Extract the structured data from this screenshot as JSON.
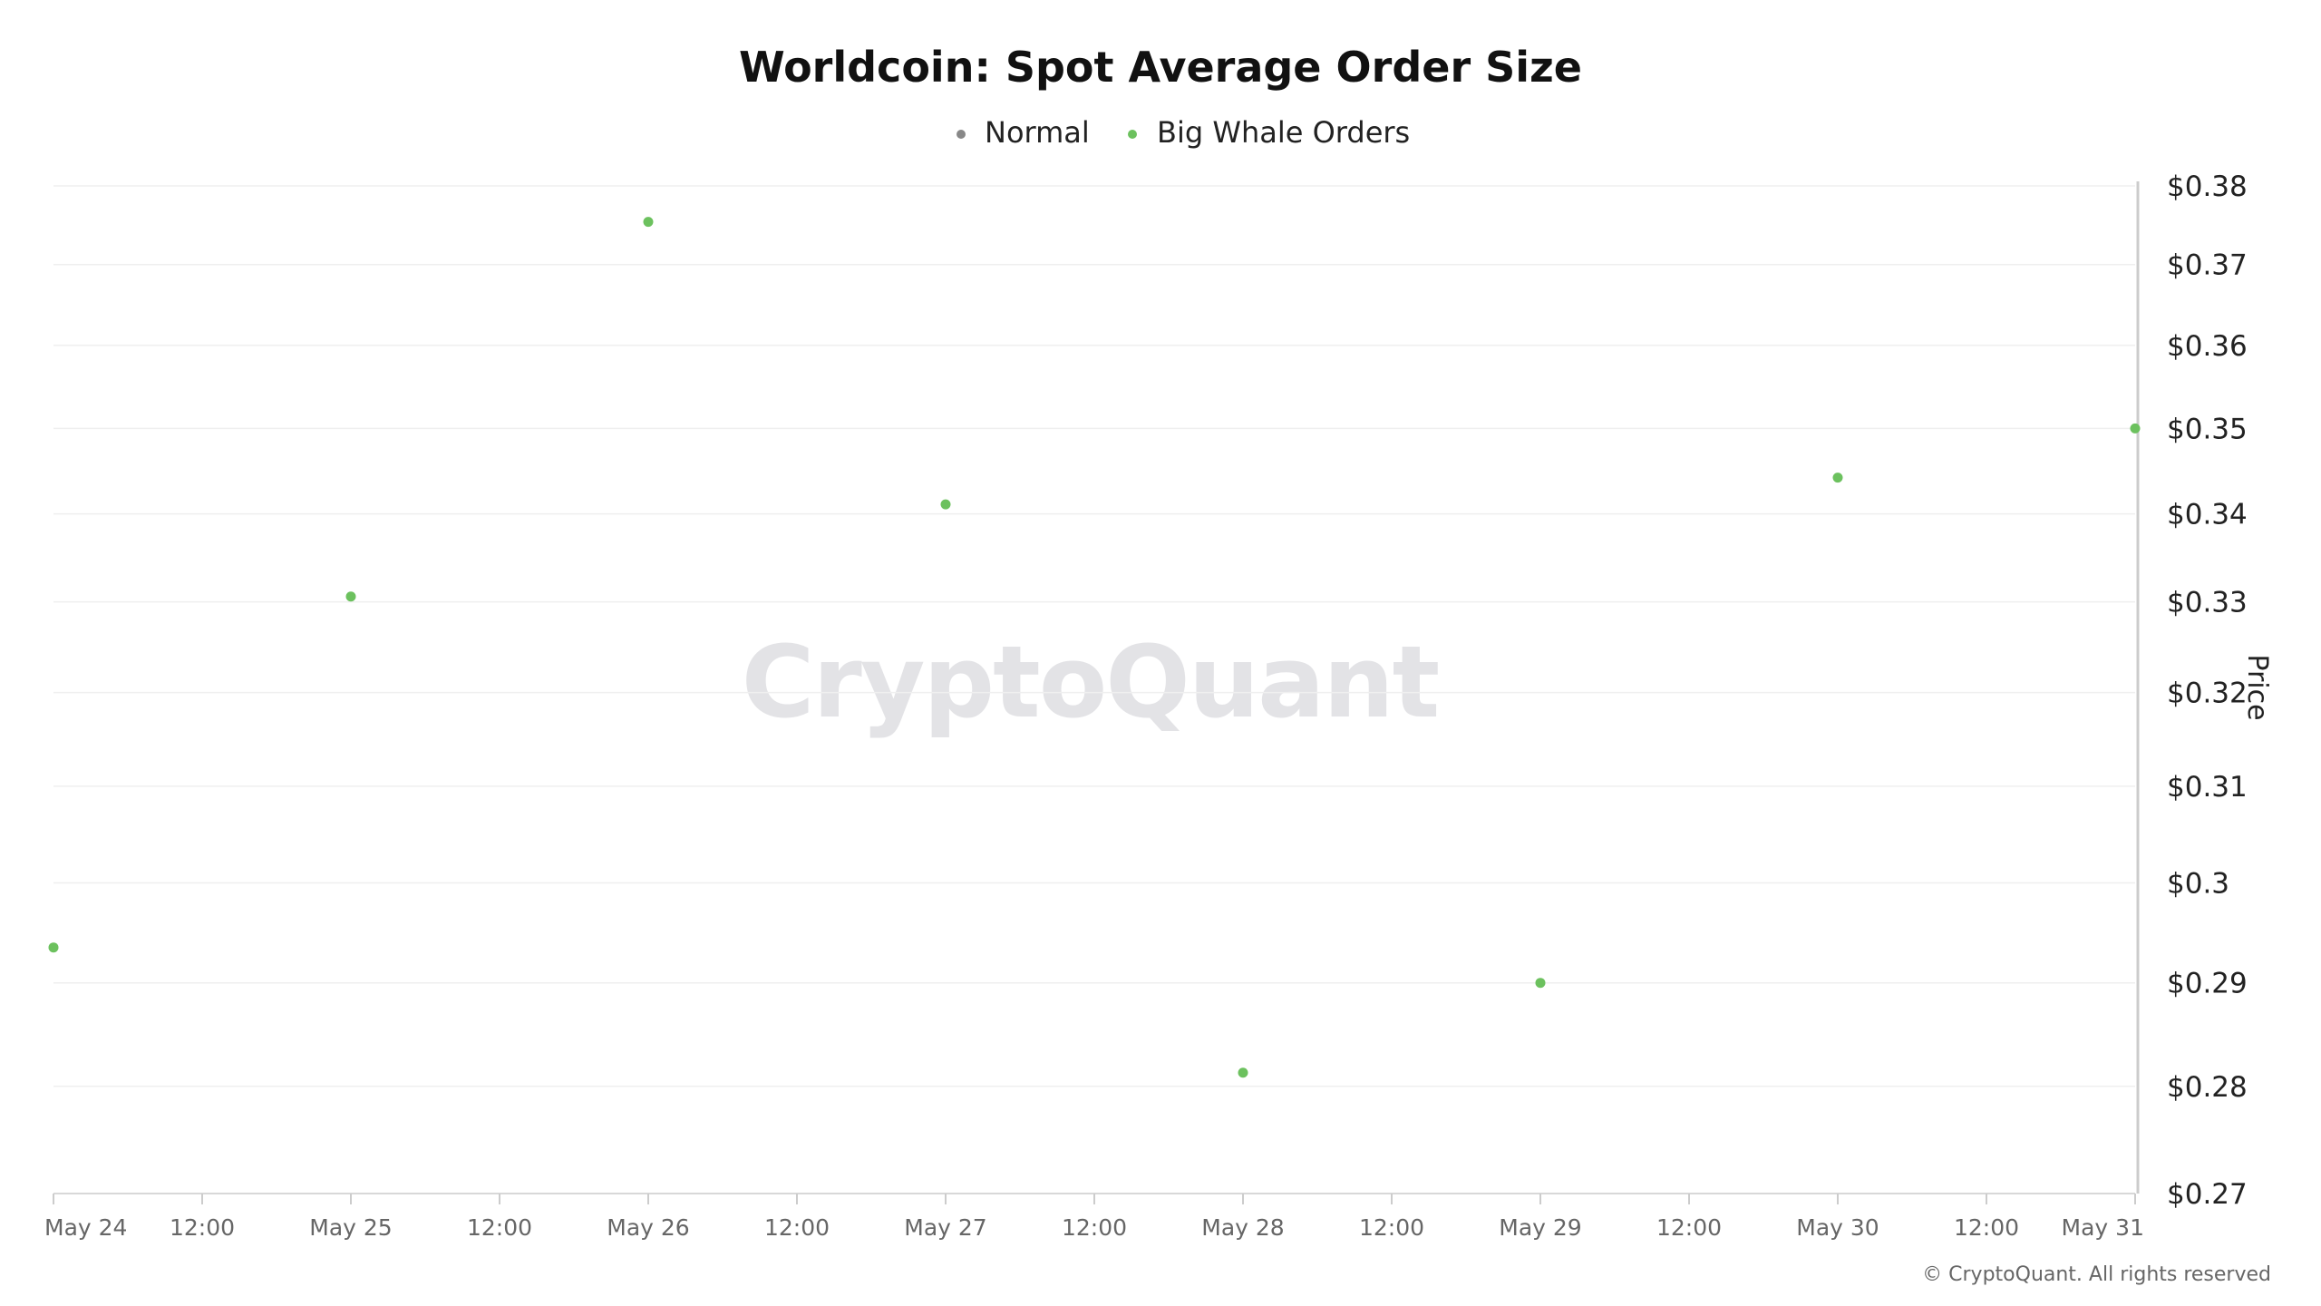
{
  "chart_data": {
    "type": "scatter",
    "title": "Worldcoin: Spot Average Order Size",
    "ylabel": "Price",
    "xlabel": "",
    "watermark": "CryptoQuant",
    "credit": "© CryptoQuant. All rights reserved",
    "legend": [
      {
        "name": "Normal",
        "color": "#888888"
      },
      {
        "name": "Big Whale Orders",
        "color": "#6cc15e"
      }
    ],
    "series": [
      {
        "name": "Big Whale Orders",
        "color": "#6cc15e",
        "points": [
          {
            "x": "May 24",
            "y": 0.2935
          },
          {
            "x": "May 25",
            "y": 0.3306
          },
          {
            "x": "May 26",
            "y": 0.3754
          },
          {
            "x": "May 27",
            "y": 0.3411
          },
          {
            "x": "May 28",
            "y": 0.2813
          },
          {
            "x": "May 29",
            "y": 0.29
          },
          {
            "x": "May 30",
            "y": 0.3442
          },
          {
            "x": "May 31",
            "y": 0.35
          }
        ]
      }
    ],
    "x_ticks": [
      "May 24",
      "12:00",
      "May 25",
      "12:00",
      "May 26",
      "12:00",
      "May 27",
      "12:00",
      "May 28",
      "12:00",
      "May 29",
      "12:00",
      "May 30",
      "12:00",
      "May 31"
    ],
    "y_ticks": [
      {
        "value": 0.27,
        "label": "$0.27"
      },
      {
        "value": 0.28,
        "label": "$0.28"
      },
      {
        "value": 0.29,
        "label": "$0.29"
      },
      {
        "value": 0.3,
        "label": "$0.3"
      },
      {
        "value": 0.31,
        "label": "$0.31"
      },
      {
        "value": 0.32,
        "label": "$0.32"
      },
      {
        "value": 0.33,
        "label": "$0.33"
      },
      {
        "value": 0.34,
        "label": "$0.34"
      },
      {
        "value": 0.35,
        "label": "$0.35"
      },
      {
        "value": 0.36,
        "label": "$0.36"
      },
      {
        "value": 0.37,
        "label": "$0.37"
      },
      {
        "value": 0.38,
        "label": "$0.38"
      }
    ],
    "ylim": [
      0.27,
      0.38
    ],
    "y_scale": "log",
    "grid": true,
    "legend_position": "top-center",
    "axis_position": "right"
  }
}
